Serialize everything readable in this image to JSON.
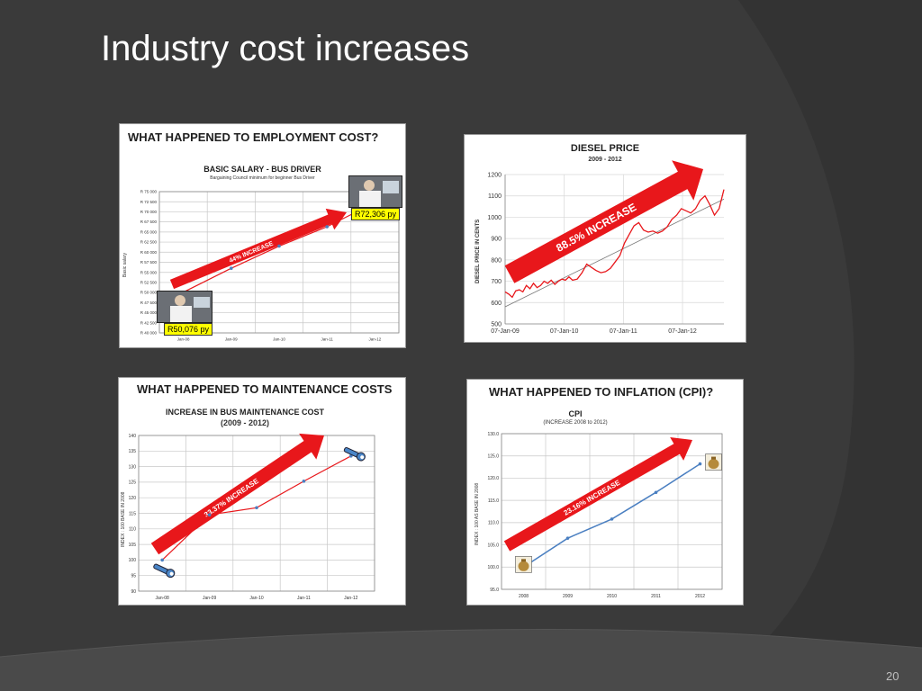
{
  "slide": {
    "title": "Industry cost increases",
    "page_number": "20"
  },
  "chart_data": [
    {
      "type": "line",
      "heading": "WHAT HAPPENED TO EMPLOYMENT COST?",
      "title": "BASIC SALARY  - BUS DRIVER",
      "subtitle": "Bargaining Council minimum  for beginner Bus Driver",
      "ylabel": "Basic salary",
      "x": [
        "Jan-08",
        "Jan-09",
        "Jan-10",
        "Jan-11",
        "Jan-12"
      ],
      "series": [
        {
          "values": [
            50076,
            56000,
            61500,
            66300,
            72306
          ]
        }
      ],
      "yticks": [
        "R 75 000",
        "R 72 500",
        "R 70 000",
        "R 67 500",
        "R 65 000",
        "R 62 500",
        "R 60 000",
        "R 57 500",
        "R 55 000",
        "R 52 500",
        "R 50 000",
        "R 47 500",
        "R 45 000",
        "R 42 500",
        "R 40 000"
      ],
      "ylim": [
        40000,
        75000
      ],
      "annotation": "44% INCREASE",
      "callouts": [
        "R50,076  py",
        "R72,306  py"
      ],
      "grid": true
    },
    {
      "type": "line",
      "title": "DIESEL PRICE",
      "subtitle": "2009 - 2012",
      "ylabel": "DIESEL PRICE IN CENTS",
      "xticks": [
        "07-Jan-09",
        "07-Jan-10",
        "07-Jan-11",
        "07-Jan-12"
      ],
      "yticks": [
        "1200",
        "1100",
        "1000",
        "900",
        "800",
        "700",
        "600",
        "500"
      ],
      "ylim": [
        500,
        1200
      ],
      "x_range": [
        2009.0,
        2012.7
      ],
      "series": [
        {
          "x": [
            2009.0,
            2009.06,
            2009.12,
            2009.18,
            2009.24,
            2009.3,
            2009.36,
            2009.42,
            2009.48,
            2009.54,
            2009.6,
            2009.66,
            2009.72,
            2009.78,
            2009.84,
            2009.9,
            2009.96,
            2010.02,
            2010.08,
            2010.14,
            2010.22,
            2010.3,
            2010.38,
            2010.46,
            2010.54,
            2010.62,
            2010.7,
            2010.78,
            2010.86,
            2010.94,
            2011.02,
            2011.1,
            2011.18,
            2011.26,
            2011.34,
            2011.42,
            2011.5,
            2011.58,
            2011.66,
            2011.74,
            2011.82,
            2011.9,
            2011.98,
            2012.06,
            2012.14,
            2012.22,
            2012.3,
            2012.38,
            2012.46,
            2012.54,
            2012.62,
            2012.7
          ],
          "values": [
            650,
            640,
            625,
            655,
            660,
            650,
            680,
            665,
            690,
            670,
            680,
            700,
            690,
            705,
            685,
            700,
            710,
            705,
            720,
            705,
            710,
            740,
            780,
            765,
            750,
            740,
            745,
            760,
            790,
            820,
            880,
            920,
            960,
            975,
            940,
            930,
            935,
            925,
            935,
            955,
            990,
            1010,
            1040,
            1030,
            1020,
            1040,
            1080,
            1100,
            1060,
            1010,
            1040,
            1130
          ]
        },
        {
          "x": [
            2009.0,
            2012.7
          ],
          "values": [
            580,
            1085
          ]
        }
      ],
      "annotation": "88.5% INCREASE",
      "grid": true
    },
    {
      "type": "line",
      "heading": "WHAT HAPPENED TO MAINTENANCE COSTS",
      "title": "INCREASE IN BUS MAINTENANCE COST",
      "subtitle": "(2009 - 2012)",
      "ylabel": "INDEX : 100 BASE IN 2008",
      "x": [
        "Jan-08",
        "Jan-09",
        "Jan-10",
        "Jan-11",
        "Jan-12"
      ],
      "series": [
        {
          "values": [
            100,
            114.5,
            116.8,
            125.3,
            133.4
          ]
        }
      ],
      "yticks": [
        "140",
        "135",
        "130",
        "125",
        "120",
        "115",
        "110",
        "105",
        "100",
        "95",
        "90"
      ],
      "ylim": [
        90,
        140
      ],
      "annotation": "33.37% INCREASE",
      "grid": true
    },
    {
      "type": "line",
      "heading": "WHAT HAPPENED TO INFLATION  (CPI)?",
      "title": "CPI",
      "subtitle": "(INCREASE 2008 to 2012)",
      "ylabel": "INDEX : 100 AS BASE IN 2008",
      "x": [
        "2008",
        "2009",
        "2010",
        "2011",
        "2012"
      ],
      "series": [
        {
          "values": [
            100.0,
            106.5,
            110.8,
            116.8,
            123.2
          ]
        }
      ],
      "yticks": [
        "130.0",
        "125.0",
        "120.0",
        "115.0",
        "110.0",
        "105.0",
        "100.0",
        "95.0"
      ],
      "ylim": [
        95,
        130
      ],
      "annotation": "23.16% INCREASE",
      "grid": true
    }
  ],
  "colors": {
    "background": "#3a3a3a",
    "arrow_red": "#e8171b",
    "line_red": "#e8171b",
    "line_blue": "#4a7fc1",
    "callout_yellow": "#ffff00"
  }
}
